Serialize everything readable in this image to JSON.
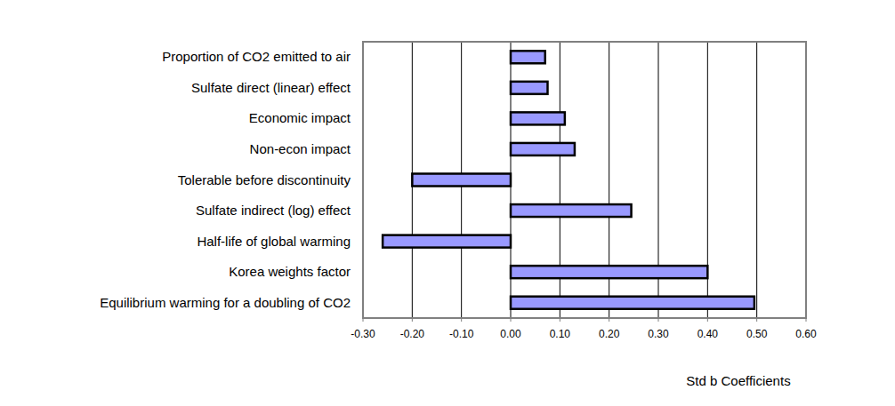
{
  "chart_data": {
    "type": "bar",
    "orientation": "horizontal",
    "x_label": "Std b Coefficients",
    "categories": [
      "Proportion of CO2 emitted to air",
      "Sulfate direct (linear) effect",
      "Economic impact",
      "Non-econ impact",
      "Tolerable before discontinuity",
      "Sulfate indirect (log) effect",
      "Half-life of global warming",
      "Korea weights factor",
      "Equilibrium warming for a doubling of CO2"
    ],
    "values": [
      0.07,
      0.075,
      0.11,
      0.13,
      -0.2,
      0.245,
      -0.26,
      0.4,
      0.495
    ],
    "color": "#9999ff",
    "xlim": [
      -0.3,
      0.6
    ],
    "xticks": [
      {
        "value": -0.3,
        "label": "-0.30"
      },
      {
        "value": -0.2,
        "label": "-0.20"
      },
      {
        "value": -0.1,
        "label": "-0.10"
      },
      {
        "value": 0,
        "label": "0.00"
      },
      {
        "value": 0.1,
        "label": "0.10"
      },
      {
        "value": 0.2,
        "label": "0.20"
      },
      {
        "value": 0.3,
        "label": "0.30"
      },
      {
        "value": 0.4,
        "label": "0.40"
      },
      {
        "value": 0.5,
        "label": "0.50"
      },
      {
        "value": 0.6,
        "label": "0.60"
      }
    ],
    "grid": true
  }
}
